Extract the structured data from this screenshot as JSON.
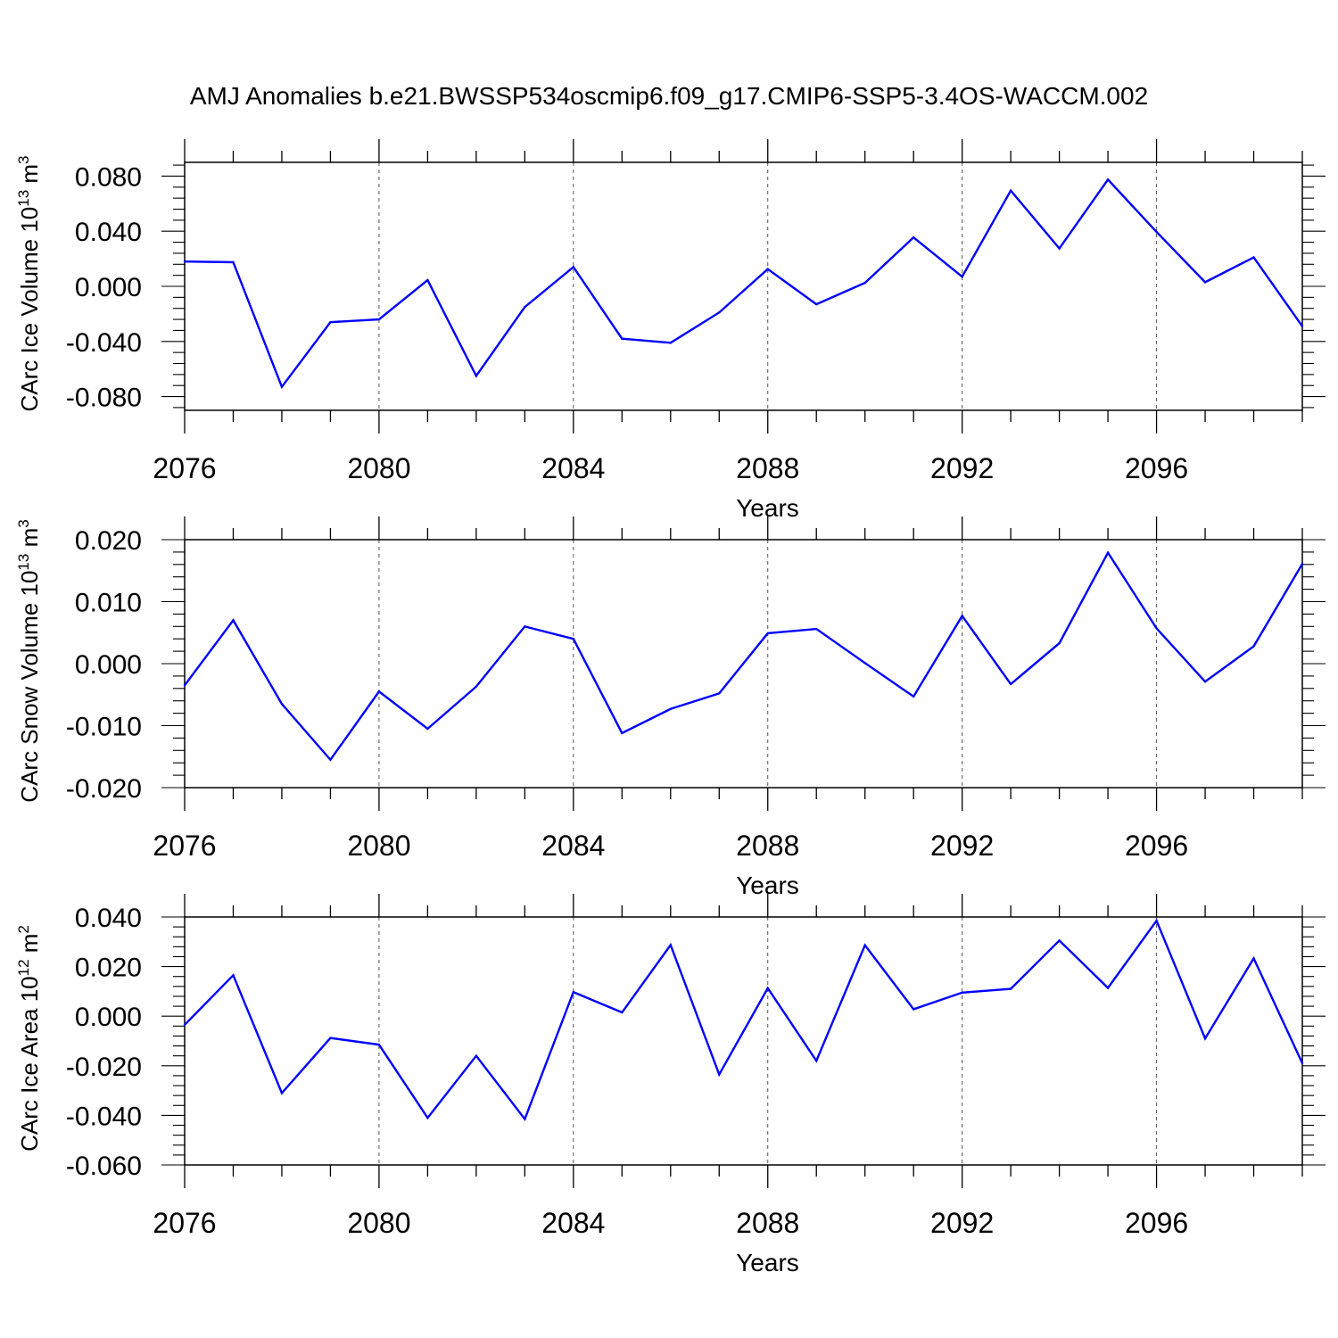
{
  "title": "AMJ Anomalies b.e21.BWSSP534oscmip6.f09_g17.CMIP6-SSP5-3.4OS-WACCM.002",
  "colors": {
    "line": "#0000ff",
    "axis": "#000000",
    "grid": "#555555"
  },
  "chart_data": [
    {
      "type": "line",
      "name": "ice-volume",
      "ylabel": "CArc Ice Volume 10",
      "ylabel_exp": "13",
      "ylabel_unit": " m",
      "ylabel_unit_exp": "3",
      "xlabel": "Years",
      "xlim": [
        2076,
        2099
      ],
      "ylim": [
        -0.09,
        0.09
      ],
      "yticks": [
        -0.08,
        -0.04,
        0.0,
        0.04,
        0.08
      ],
      "ytick_labels": [
        "-0.080",
        "-0.040",
        "0.000",
        "0.040",
        "0.080"
      ],
      "yminor_step": 0.008,
      "xticks": [
        2076,
        2080,
        2084,
        2088,
        2092,
        2096
      ],
      "xtick_labels": [
        "2076",
        "2080",
        "2084",
        "2088",
        "2092",
        "2096"
      ],
      "x": [
        2076,
        2077,
        2078,
        2079,
        2080,
        2081,
        2082,
        2083,
        2084,
        2085,
        2086,
        2087,
        2088,
        2089,
        2090,
        2091,
        2092,
        2093,
        2094,
        2095,
        2096,
        2097,
        2098,
        2099
      ],
      "values": [
        0.018,
        0.0175,
        -0.073,
        -0.026,
        -0.024,
        0.0045,
        -0.065,
        -0.015,
        0.014,
        -0.038,
        -0.041,
        -0.019,
        0.0125,
        -0.013,
        0.0025,
        0.0355,
        0.007,
        0.0695,
        0.0275,
        0.0775,
        0.0395,
        0.003,
        0.021,
        -0.029
      ]
    },
    {
      "type": "line",
      "name": "snow-volume",
      "ylabel": "CArc Snow Volume 10",
      "ylabel_exp": "13",
      "ylabel_unit": " m",
      "ylabel_unit_exp": "3",
      "xlabel": "Years",
      "xlim": [
        2076,
        2099
      ],
      "ylim": [
        -0.02,
        0.02
      ],
      "yticks": [
        -0.02,
        -0.01,
        0.0,
        0.01,
        0.02
      ],
      "ytick_labels": [
        "-0.020",
        "-0.010",
        "0.000",
        "0.010",
        "0.020"
      ],
      "yminor_step": 0.002,
      "xticks": [
        2076,
        2080,
        2084,
        2088,
        2092,
        2096
      ],
      "xtick_labels": [
        "2076",
        "2080",
        "2084",
        "2088",
        "2092",
        "2096"
      ],
      "x": [
        2076,
        2077,
        2078,
        2079,
        2080,
        2081,
        2082,
        2083,
        2084,
        2085,
        2086,
        2087,
        2088,
        2089,
        2090,
        2091,
        2092,
        2093,
        2094,
        2095,
        2096,
        2097,
        2098,
        2099
      ],
      "values": [
        -0.0035,
        0.007,
        -0.0065,
        -0.0155,
        -0.0045,
        -0.0105,
        -0.0037,
        0.006,
        0.004,
        -0.0112,
        -0.0073,
        -0.0048,
        0.0049,
        0.0056,
        0.0001,
        -0.0053,
        0.0077,
        -0.0033,
        0.0033,
        0.0179,
        0.0057,
        -0.0029,
        0.0028,
        0.0161
      ]
    },
    {
      "type": "line",
      "name": "ice-area",
      "ylabel": "CArc Ice Area 10",
      "ylabel_exp": "12",
      "ylabel_unit": " m",
      "ylabel_unit_exp": "2",
      "xlabel": "Years",
      "xlim": [
        2076,
        2099
      ],
      "ylim": [
        -0.06,
        0.04
      ],
      "yticks": [
        -0.06,
        -0.04,
        -0.02,
        0.0,
        0.02,
        0.04
      ],
      "ytick_labels": [
        "-0.060",
        "-0.040",
        "-0.020",
        "0.000",
        "0.020",
        "0.040"
      ],
      "yminor_step": 0.004,
      "xticks": [
        2076,
        2080,
        2084,
        2088,
        2092,
        2096
      ],
      "xtick_labels": [
        "2076",
        "2080",
        "2084",
        "2088",
        "2092",
        "2096"
      ],
      "x": [
        2076,
        2077,
        2078,
        2079,
        2080,
        2081,
        2082,
        2083,
        2084,
        2085,
        2086,
        2087,
        2088,
        2089,
        2090,
        2091,
        2092,
        2093,
        2094,
        2095,
        2096,
        2097,
        2098,
        2099
      ],
      "values": [
        -0.0035,
        0.0165,
        -0.031,
        -0.0088,
        -0.0115,
        -0.041,
        -0.016,
        -0.0415,
        0.0097,
        0.0015,
        0.0287,
        -0.0235,
        0.0113,
        -0.018,
        0.0286,
        0.0028,
        0.0095,
        0.011,
        0.0305,
        0.0114,
        0.0385,
        -0.009,
        0.0233,
        -0.019
      ]
    }
  ]
}
